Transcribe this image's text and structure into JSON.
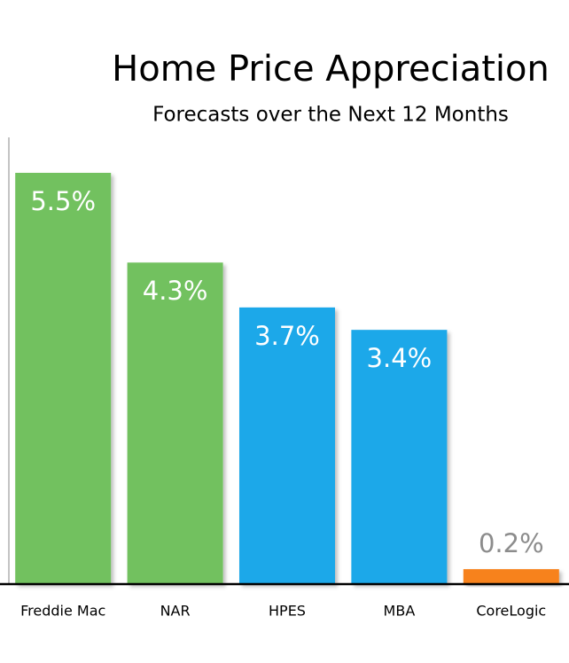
{
  "chart_data": {
    "type": "bar",
    "title": "Home Price Appreciation",
    "subtitle": "Forecasts over the Next 12 Months",
    "categories": [
      "Freddie Mac",
      "NAR",
      "HPES",
      "MBA",
      "CoreLogic"
    ],
    "values": [
      5.5,
      4.3,
      3.7,
      3.4,
      0.2
    ],
    "value_labels": [
      "5.5%",
      "4.3%",
      "3.7%",
      "3.4%",
      "0.2%"
    ],
    "colors": [
      "#72c15e",
      "#72c15e",
      "#1ba8e9",
      "#1ba8e9",
      "#f7821b"
    ]
  }
}
